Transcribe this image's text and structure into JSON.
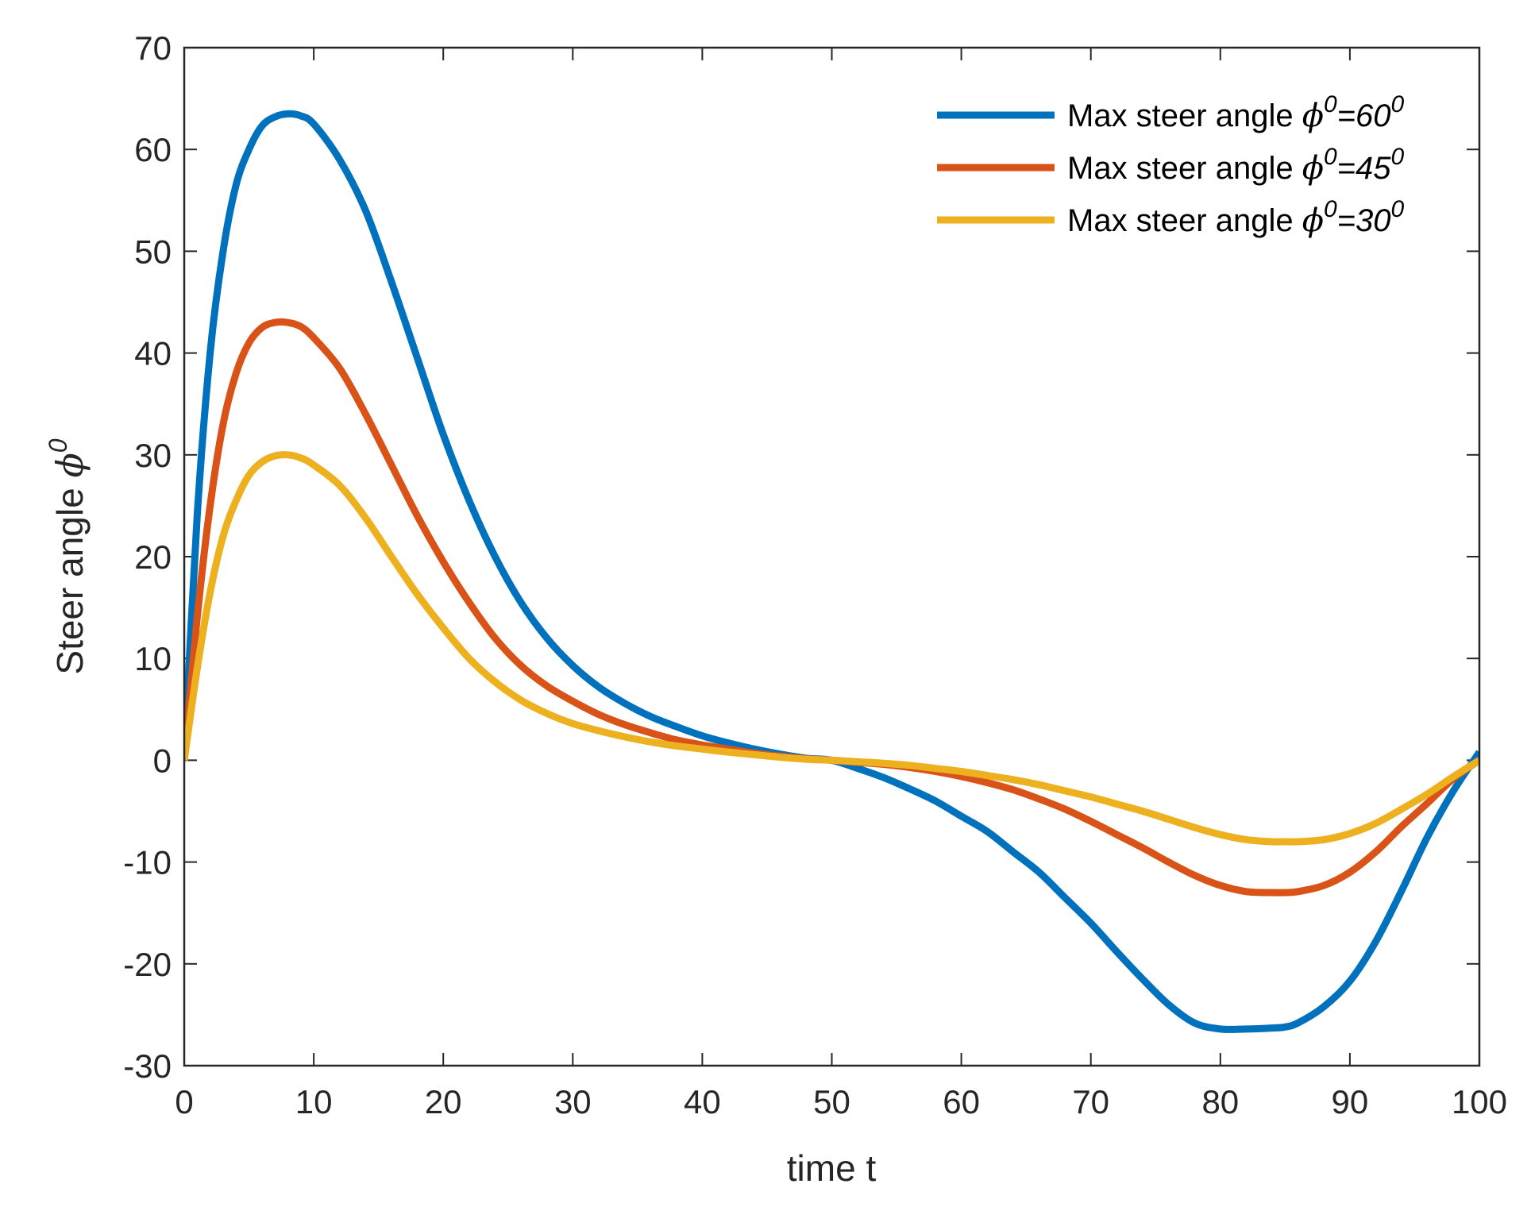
{
  "chart_data": {
    "type": "line",
    "xlabel": "time t",
    "ylabel": {
      "text": "Steer angle ",
      "symbol": "ϕ",
      "superscript": "0"
    },
    "xlim": [
      0,
      100
    ],
    "ylim": [
      -30,
      70
    ],
    "xticks": [
      0,
      10,
      20,
      30,
      40,
      50,
      60,
      70,
      80,
      90,
      100
    ],
    "yticks": [
      -30,
      -20,
      -10,
      0,
      10,
      20,
      30,
      40,
      50,
      60,
      70
    ],
    "grid": false,
    "box": true,
    "legend": {
      "placement": "top-right",
      "prefix": "Max steer angle ",
      "symbol": "ϕ",
      "superscript": "0",
      "equals": "="
    },
    "series": [
      {
        "name": "Max steer angle ϕ0=600",
        "label_value": "60",
        "label_sup": "0",
        "color": "#0072BD",
        "x": [
          0,
          1,
          2,
          3,
          4,
          5,
          6,
          7,
          8,
          9,
          10,
          12,
          14,
          16,
          18,
          20,
          22,
          24,
          26,
          28,
          30,
          32,
          34,
          36,
          38,
          40,
          42,
          44,
          46,
          48,
          50,
          52,
          54,
          56,
          58,
          60,
          62,
          64,
          66,
          68,
          70,
          72,
          74,
          76,
          78,
          80,
          82,
          84,
          85,
          86,
          88,
          90,
          92,
          94,
          96,
          98,
          100
        ],
        "y": [
          0,
          24,
          40,
          50,
          56.5,
          60,
          62.3,
          63.2,
          63.5,
          63.3,
          62.5,
          59,
          54,
          47,
          39.5,
          32,
          25.5,
          20,
          15.5,
          12,
          9.3,
          7.2,
          5.6,
          4.3,
          3.3,
          2.4,
          1.7,
          1.1,
          0.6,
          0.2,
          0,
          -0.8,
          -1.7,
          -2.8,
          -4,
          -5.5,
          -7,
          -9,
          -11,
          -13.5,
          -16,
          -18.8,
          -21.5,
          -24,
          -25.8,
          -26.4,
          -26.4,
          -26.3,
          -26.2,
          -25.8,
          -24.2,
          -21.7,
          -17.8,
          -12.8,
          -7.5,
          -3,
          0.8
        ]
      },
      {
        "name": "Max steer angle ϕ0=450",
        "label_value": "45",
        "label_sup": "0",
        "color": "#D95319",
        "x": [
          0,
          1,
          2,
          3,
          4,
          5,
          6,
          7,
          8,
          9,
          10,
          12,
          14,
          16,
          18,
          20,
          22,
          24,
          26,
          28,
          30,
          32,
          34,
          36,
          38,
          40,
          42,
          44,
          46,
          48,
          50,
          52,
          54,
          56,
          58,
          60,
          62,
          64,
          66,
          68,
          70,
          72,
          74,
          76,
          78,
          80,
          82,
          84,
          85,
          86,
          88,
          90,
          92,
          94,
          96,
          98,
          100
        ],
        "y": [
          0,
          14,
          25,
          33,
          38,
          41,
          42.5,
          43,
          43,
          42.6,
          41.5,
          38.5,
          34,
          29,
          24,
          19.5,
          15.5,
          12,
          9.3,
          7.3,
          5.8,
          4.5,
          3.5,
          2.7,
          2,
          1.5,
          1.1,
          0.7,
          0.4,
          0.15,
          0,
          -0.2,
          -0.4,
          -0.7,
          -1.1,
          -1.6,
          -2.2,
          -2.9,
          -3.8,
          -4.8,
          -6,
          -7.3,
          -8.6,
          -10,
          -11.3,
          -12.3,
          -12.9,
          -13,
          -13,
          -12.9,
          -12.3,
          -11,
          -9,
          -6.5,
          -4.2,
          -1.8,
          0
        ]
      },
      {
        "name": "Max steer angle ϕ0=300",
        "label_value": "30",
        "label_sup": "0",
        "color": "#EDB120",
        "x": [
          0,
          1,
          2,
          3,
          4,
          5,
          6,
          7,
          8,
          9,
          10,
          12,
          14,
          16,
          18,
          20,
          22,
          24,
          26,
          28,
          30,
          32,
          34,
          36,
          38,
          40,
          42,
          44,
          46,
          48,
          50,
          52,
          54,
          56,
          58,
          60,
          62,
          64,
          66,
          68,
          70,
          72,
          74,
          76,
          78,
          80,
          82,
          84,
          85,
          86,
          88,
          90,
          92,
          94,
          96,
          98,
          100
        ],
        "y": [
          0,
          9,
          16.5,
          22,
          25.5,
          28,
          29.3,
          29.9,
          30,
          29.7,
          29,
          27,
          23.8,
          20,
          16.3,
          13,
          10,
          7.7,
          5.9,
          4.6,
          3.6,
          2.9,
          2.3,
          1.8,
          1.4,
          1.1,
          0.8,
          0.55,
          0.3,
          0.1,
          0,
          -0.15,
          -0.3,
          -0.5,
          -0.8,
          -1.1,
          -1.5,
          -1.9,
          -2.4,
          -3,
          -3.6,
          -4.3,
          -5,
          -5.8,
          -6.6,
          -7.3,
          -7.8,
          -8,
          -8,
          -8,
          -7.8,
          -7.2,
          -6.2,
          -4.8,
          -3.3,
          -1.6,
          0
        ]
      }
    ]
  }
}
